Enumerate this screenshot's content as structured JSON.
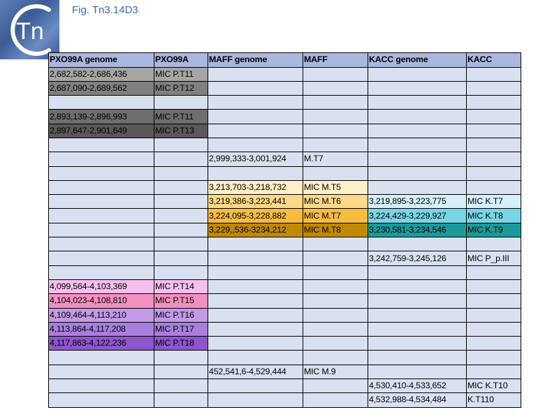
{
  "figure_title": "Fig. Tn3.14D3",
  "logo_text": "Tn",
  "columns": [
    "PXO99A genome",
    "PXO99A",
    "MAFF genome",
    "MAFF",
    "KACC genome",
    "KACC"
  ],
  "rows": [
    {
      "cells": [
        "2,682,582-2,686,436",
        "MIC P.T11",
        "",
        "",
        "",
        ""
      ],
      "colors": [
        "#a6a6a6",
        "#a6a6a6",
        "",
        "",
        "",
        ""
      ]
    },
    {
      "cells": [
        "2,687,090-2,689,562",
        "MIC P.T12",
        "",
        "",
        "",
        ""
      ],
      "colors": [
        "#808080",
        "#808080",
        "",
        "",
        "",
        ""
      ]
    },
    {
      "cells": [
        "",
        "",
        "",
        "",
        "",
        ""
      ],
      "colors": [
        "",
        "",
        "",
        "",
        "",
        ""
      ]
    },
    {
      "cells": [
        "2,893,139-2,896,993",
        "MIC P.T11",
        "",
        "",
        "",
        ""
      ],
      "colors": [
        "#6e6e6e",
        "#6e6e6e",
        "",
        "",
        "",
        ""
      ]
    },
    {
      "cells": [
        "2,897,647-2,901,649",
        "MIC P.T13",
        "",
        "",
        "",
        ""
      ],
      "colors": [
        "#595959",
        "#595959",
        "",
        "",
        "",
        ""
      ]
    },
    {
      "cells": [
        "",
        "",
        "",
        "",
        "",
        ""
      ],
      "colors": [
        "",
        "",
        "",
        "",
        "",
        ""
      ]
    },
    {
      "cells": [
        "",
        "",
        "2,999,333-3,001,924",
        "M.T7",
        "",
        ""
      ],
      "colors": [
        "",
        "",
        "",
        "",
        "",
        ""
      ]
    },
    {
      "cells": [
        "",
        "",
        "",
        "",
        "",
        ""
      ],
      "colors": [
        "",
        "",
        "",
        "",
        "",
        ""
      ]
    },
    {
      "cells": [
        "",
        "",
        "3,213,703-3,218,732",
        "MIC M.T5",
        "",
        ""
      ],
      "colors": [
        "",
        "",
        "#fdefc6",
        "#fdefc6",
        "",
        ""
      ]
    },
    {
      "cells": [
        "",
        "",
        "3,219,386-3,223,441",
        "MIC M.T6",
        "3,219,895-3,223,775",
        "MIC K.T7"
      ],
      "colors": [
        "",
        "",
        "#fcd98a",
        "#fcd98a",
        "#d7f0f8",
        "#d7f0f8"
      ]
    },
    {
      "cells": [
        "",
        "",
        "3,224,095-3,228,882",
        "MIC M.T7",
        "3,224,429-3,229,927",
        "MIC K.T8"
      ],
      "colors": [
        "",
        "",
        "#f6bc40",
        "#f6bc40",
        "#79d5e6",
        "#79d5e6"
      ]
    },
    {
      "cells": [
        "",
        "",
        "3,229,,536-3234,212",
        "MIC M.T8",
        "3,230,581-3,234,546",
        "MIC K.T9"
      ],
      "colors": [
        "",
        "",
        "#c08a00",
        "#c08a00",
        "#1c9a9a",
        "#1c9a9a"
      ]
    },
    {
      "cells": [
        "",
        "",
        "",
        "",
        "",
        ""
      ],
      "colors": [
        "",
        "",
        "",
        "",
        "",
        ""
      ]
    },
    {
      "cells": [
        "",
        "",
        "",
        "",
        "3,242,759-3,245,126",
        "MIC P_p.III"
      ],
      "colors": [
        "",
        "",
        "",
        "",
        "",
        ""
      ]
    },
    {
      "cells": [
        "",
        "",
        "",
        "",
        "",
        ""
      ],
      "colors": [
        "",
        "",
        "",
        "",
        "",
        ""
      ]
    },
    {
      "cells": [
        "4,099,564-4,103,369",
        "MIC P.T14",
        "",
        "",
        "",
        ""
      ],
      "colors": [
        "#f5c0ef",
        "#f5c0ef",
        "",
        "",
        "",
        ""
      ]
    },
    {
      "cells": [
        "4,104,023-4,108,810",
        "MIC P.T15",
        "",
        "",
        "",
        ""
      ],
      "colors": [
        "#f290c0",
        "#f290c0",
        "",
        "",
        "",
        ""
      ]
    },
    {
      "cells": [
        "4,109,464-4,113,210",
        "MIC P.T16",
        "",
        "",
        "",
        ""
      ],
      "colors": [
        "#c39ae6",
        "#c39ae6",
        "",
        "",
        "",
        ""
      ]
    },
    {
      "cells": [
        "4,113,864-4,117,208",
        "MIC P.T17",
        "",
        "",
        "",
        ""
      ],
      "colors": [
        "#a97fdd",
        "#a97fdd",
        "",
        "",
        "",
        ""
      ]
    },
    {
      "cells": [
        "4,117,863-4,122,236",
        "MIC P.T18",
        "",
        "",
        "",
        ""
      ],
      "colors": [
        "#8e55cf",
        "#8e55cf",
        "",
        "",
        "",
        ""
      ]
    },
    {
      "cells": [
        "",
        "",
        "",
        "",
        "",
        ""
      ],
      "colors": [
        "",
        "",
        "",
        "",
        "",
        ""
      ]
    },
    {
      "cells": [
        "",
        "",
        "452,541,6-4,529,444",
        "MIC M.9",
        "",
        ""
      ],
      "colors": [
        "",
        "",
        "",
        "",
        "",
        ""
      ]
    },
    {
      "cells": [
        "",
        "",
        "",
        "",
        "4,530,410-4,533,652",
        "MIC K.T10"
      ],
      "colors": [
        "",
        "",
        "",
        "",
        "",
        ""
      ]
    },
    {
      "cells": [
        "",
        "",
        "",
        "",
        "4,532,988-4,534,484",
        "K.T110"
      ],
      "colors": [
        "",
        "",
        "",
        "",
        "",
        ""
      ]
    }
  ]
}
